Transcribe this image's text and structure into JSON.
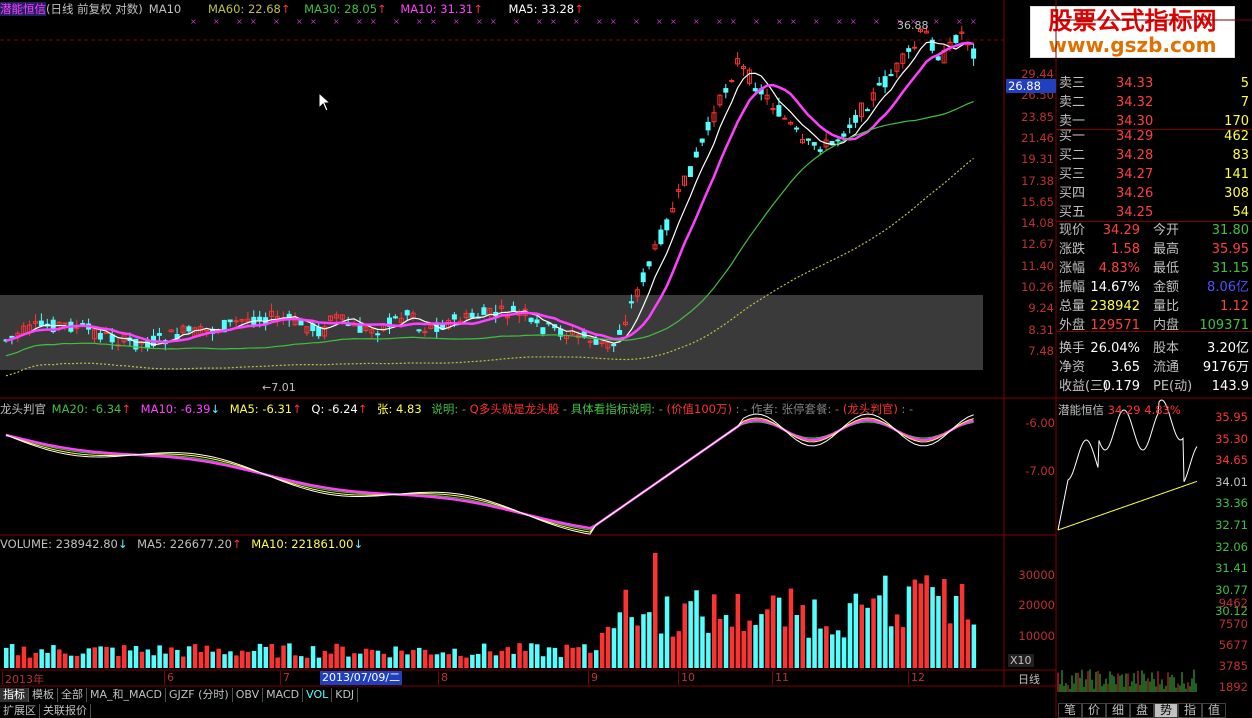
{
  "header": {
    "title": "潜能恒信",
    "period": "(日线 前复权 对数)",
    "ma_main": "MA10",
    "ma60": "MA60: 22.68",
    "ma30": "MA30: 28.05",
    "ma10": "MA10: 31.31",
    "ma5": "MA5: 33.28"
  },
  "watermark": {
    "line1": "股票公式指标网",
    "line2": "www.gszb.com"
  },
  "price_axis": [
    "29.44",
    "26.50",
    "23.85",
    "21.46",
    "19.31",
    "17.38",
    "15.65",
    "14.08",
    "12.67",
    "11.40",
    "10.26",
    "9.24",
    "8.31",
    "7.48"
  ],
  "current_price_tag": "26.88",
  "chart_notes": {
    "high": "36.88",
    "low": "7.01"
  },
  "indicator": {
    "name": "龙头判官",
    "ma20": "MA20: -6.34",
    "ma10": "MA10: -6.39",
    "ma5": "MA5: -6.31",
    "q": "Q: -6.24",
    "zhang": "张: 4.83",
    "desc": "说明: -",
    "q_desc": "Q多头就是龙头股",
    "detail": "- 具体看指标说明: -",
    "value": "(价值100万)",
    "author_sep": ": -",
    "author": "作者: 张停套餐: -",
    "panel_name": "(龙头判官)",
    "end": ": -",
    "axis": [
      "-6.00",
      "-7.00"
    ]
  },
  "volume": {
    "label": "VOLUME: 238942.80",
    "ma5": "MA5: 226677.20",
    "ma10": "MA10: 221861.00",
    "axis": [
      "30000",
      "20000",
      "10000"
    ],
    "unit": "X10"
  },
  "date_axis": {
    "labels": [
      "2013年",
      "6",
      "7",
      "8",
      "9",
      "10",
      "11",
      "12"
    ],
    "cursor_date": "2013/07/09/二",
    "period_label": "日线"
  },
  "bottom_tabs": [
    "指标",
    "模板",
    "全部",
    "MA_和_MACD",
    "GJZF (分时)",
    "OBV",
    "MACD",
    "VOL",
    "KDJ"
  ],
  "bottom_tabs2": [
    "扩展区",
    "关联报价"
  ],
  "right_tabs": [
    "笔",
    "价",
    "细",
    "盘",
    "势",
    "指",
    "值"
  ],
  "order_book": {
    "asks": [
      {
        "label": "卖三",
        "price": "34.33",
        "vol": "5"
      },
      {
        "label": "卖二",
        "price": "34.32",
        "vol": "7"
      },
      {
        "label": "卖一",
        "price": "34.30",
        "vol": "170"
      }
    ],
    "bids": [
      {
        "label": "买一",
        "price": "34.29",
        "vol": "462"
      },
      {
        "label": "买二",
        "price": "34.28",
        "vol": "83"
      },
      {
        "label": "买三",
        "price": "34.27",
        "vol": "141"
      },
      {
        "label": "买四",
        "price": "34.26",
        "vol": "308"
      },
      {
        "label": "买五",
        "price": "34.25",
        "vol": "54"
      }
    ]
  },
  "stats": [
    {
      "l1": "现价",
      "v1": "34.29",
      "l2": "今开",
      "v2": "31.80"
    },
    {
      "l1": "涨跌",
      "v1": "1.58",
      "l2": "最高",
      "v2": "35.95"
    },
    {
      "l1": "涨幅",
      "v1": "4.83%",
      "l2": "最低",
      "v2": "31.15"
    },
    {
      "l1": "振幅",
      "v1": "14.67%",
      "l2": "金额",
      "v2": "8.06亿"
    },
    {
      "l1": "总量",
      "v1": "238942",
      "l2": "量比",
      "v2": "1.12"
    },
    {
      "l1": "外盘",
      "v1": "129571",
      "l2": "内盘",
      "v2": "109371"
    },
    {
      "l1": "换手",
      "v1": "26.04%",
      "l2": "股本",
      "v2": "3.20亿"
    },
    {
      "l1": "净资",
      "v1": "3.65",
      "l2": "流通",
      "v2": "9176万"
    },
    {
      "l1": "收益(三)",
      "v1": "0.179",
      "l2": "PE(动)",
      "v2": "143.9"
    }
  ],
  "intraday": {
    "title": "潜能恒信",
    "price": "34.29",
    "pct": "4.83%",
    "axis": [
      "35.95",
      "35.30",
      "34.65",
      "34.01",
      "33.36",
      "32.71",
      "32.06",
      "31.41",
      "30.77",
      "30.12"
    ],
    "vol_axis": [
      "9462",
      "7570",
      "5677",
      "3785",
      "1892"
    ]
  },
  "colors": {
    "up": "#ff3232",
    "down": "#54ffff",
    "ma5": "#ffffff",
    "ma10": "#ff40ff",
    "ma30": "#40c040",
    "ma60": "#c0c040",
    "grid": "#800000",
    "bg": "#000000"
  }
}
